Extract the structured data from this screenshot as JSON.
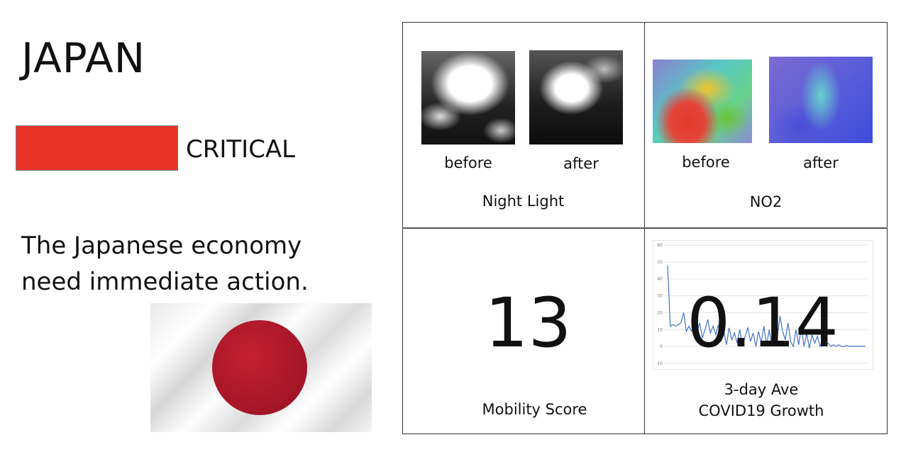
{
  "country": "JAPAN",
  "status": {
    "label": "CRITICAL",
    "color": "#e63325"
  },
  "message_lines": [
    "The Japanese economy",
    "need immediate action."
  ],
  "flag": {
    "icon": "japan-flag-icon",
    "disc_color": "#b01a2c"
  },
  "panels": {
    "night_light": {
      "title": "Night Light",
      "before_label": "before",
      "after_label": "after"
    },
    "no2": {
      "title": "NO2",
      "before_label": "before",
      "after_label": "after"
    },
    "mobility": {
      "value": "13",
      "title": "Mobility Score"
    },
    "covid": {
      "value": "0.14",
      "title_line1": "3-day Ave",
      "title_line2": "COVID19 Growth"
    }
  },
  "chart_data": {
    "type": "line",
    "ylim": [
      -10,
      60
    ],
    "yticks": [
      "60",
      "50",
      "40",
      "30",
      "20",
      "10",
      "0",
      "-10"
    ],
    "grid": true,
    "series": [
      {
        "color": "#4472c4",
        "values": [
          48,
          12,
          13,
          12,
          13,
          14,
          20,
          9,
          12,
          9,
          11,
          8,
          14,
          5,
          10,
          16,
          8,
          12,
          7,
          13,
          3,
          9,
          1,
          11,
          4,
          8,
          2,
          10,
          0,
          6,
          11,
          3,
          8,
          0,
          9,
          2,
          12,
          1,
          10,
          0,
          13,
          5,
          18,
          9,
          4,
          14,
          3,
          0,
          10,
          1,
          11,
          0,
          8,
          -1,
          7,
          2,
          6,
          0,
          4,
          1,
          2,
          0,
          1,
          0,
          1,
          0,
          0,
          0.5,
          0,
          0,
          0.2,
          0.1,
          0,
          0.1,
          0.14
        ]
      }
    ]
  }
}
